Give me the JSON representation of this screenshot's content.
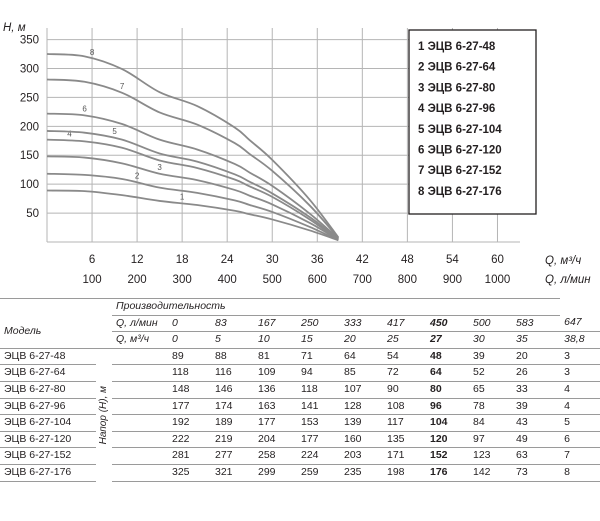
{
  "chart_data": {
    "type": "line",
    "ylabel": "H, м",
    "xlabel_top": "Q, м³/ч",
    "xlabel_bottom": "Q, л/мин",
    "y_ticks": [
      50,
      100,
      150,
      200,
      250,
      300,
      350
    ],
    "x_ticks_m3h": [
      6,
      12,
      18,
      24,
      30,
      36,
      42,
      48,
      54,
      60
    ],
    "x_ticks_lmin": [
      100,
      200,
      300,
      400,
      500,
      600,
      700,
      800,
      900,
      1000
    ],
    "xlim_m3h": [
      0,
      63
    ],
    "ylim": [
      0,
      370
    ],
    "legend_placement": "top-right",
    "series": [
      {
        "label": "1",
        "name": "1 ЭЦВ 6-27-48",
        "x": [
          0,
          5,
          10,
          15,
          20,
          25,
          27,
          30,
          35,
          38.8
        ],
        "y": [
          89,
          88,
          81,
          71,
          64,
          54,
          48,
          39,
          20,
          3
        ]
      },
      {
        "label": "2",
        "name": "2 ЭЦВ 6-27-64",
        "x": [
          0,
          5,
          10,
          15,
          20,
          25,
          27,
          30,
          35,
          38.8
        ],
        "y": [
          118,
          116,
          109,
          94,
          85,
          72,
          64,
          52,
          26,
          3
        ]
      },
      {
        "label": "3",
        "name": "3 ЭЦВ 6-27-80",
        "x": [
          0,
          5,
          10,
          15,
          20,
          25,
          27,
          30,
          35,
          38.8
        ],
        "y": [
          148,
          146,
          136,
          118,
          107,
          90,
          80,
          65,
          33,
          4
        ]
      },
      {
        "label": "4",
        "name": "4 ЭЦВ 6-27-96",
        "x": [
          0,
          5,
          10,
          15,
          20,
          25,
          27,
          30,
          35,
          38.8
        ],
        "y": [
          177,
          174,
          163,
          141,
          128,
          108,
          96,
          78,
          39,
          4
        ]
      },
      {
        "label": "5",
        "name": "5 ЭЦВ 6-27-104",
        "x": [
          0,
          5,
          10,
          15,
          20,
          25,
          27,
          30,
          35,
          38.8
        ],
        "y": [
          192,
          189,
          177,
          153,
          139,
          117,
          104,
          84,
          43,
          5
        ]
      },
      {
        "label": "6",
        "name": "6 ЭЦВ 6-27-120",
        "x": [
          0,
          5,
          10,
          15,
          20,
          25,
          27,
          30,
          35,
          38.8
        ],
        "y": [
          222,
          219,
          204,
          177,
          160,
          135,
          120,
          97,
          49,
          6
        ]
      },
      {
        "label": "7",
        "name": "7 ЭЦВ 6-27-152",
        "x": [
          0,
          5,
          10,
          15,
          20,
          25,
          27,
          30,
          35,
          38.8
        ],
        "y": [
          281,
          277,
          258,
          224,
          203,
          171,
          152,
          123,
          63,
          7
        ]
      },
      {
        "label": "8",
        "name": "8 ЭЦВ 6-27-176",
        "x": [
          0,
          5,
          10,
          15,
          20,
          25,
          27,
          30,
          35,
          38.8
        ],
        "y": [
          325,
          321,
          299,
          259,
          235,
          198,
          176,
          142,
          73,
          8
        ]
      }
    ],
    "colors": {
      "grid": "#b5b5b5",
      "curve": "#8a8a8a",
      "legend_border": "#231f20"
    }
  },
  "table": {
    "productivity_header": "Производительность",
    "model_header": "Модель",
    "q_lmin_label": "Q, л/мин",
    "q_m3h_label": "Q, м³/ч",
    "q_lmin": [
      "0",
      "83",
      "167",
      "250",
      "333",
      "417",
      "450",
      "500",
      "583",
      "647"
    ],
    "q_m3h": [
      "0",
      "5",
      "10",
      "15",
      "20",
      "25",
      "27",
      "30",
      "35",
      "38,8"
    ],
    "highlight_column": 6,
    "head_label": "Напор (Н), м",
    "rows": [
      {
        "model": "ЭЦВ 6-27-48",
        "values": [
          "89",
          "88",
          "81",
          "71",
          "64",
          "54",
          "48",
          "39",
          "20",
          "3"
        ]
      },
      {
        "model": "ЭЦВ 6-27-64",
        "values": [
          "118",
          "116",
          "109",
          "94",
          "85",
          "72",
          "64",
          "52",
          "26",
          "3"
        ]
      },
      {
        "model": "ЭЦВ 6-27-80",
        "values": [
          "148",
          "146",
          "136",
          "118",
          "107",
          "90",
          "80",
          "65",
          "33",
          "4"
        ]
      },
      {
        "model": "ЭЦВ 6-27-96",
        "values": [
          "177",
          "174",
          "163",
          "141",
          "128",
          "108",
          "96",
          "78",
          "39",
          "4"
        ]
      },
      {
        "model": "ЭЦВ 6-27-104",
        "values": [
          "192",
          "189",
          "177",
          "153",
          "139",
          "117",
          "104",
          "84",
          "43",
          "5"
        ]
      },
      {
        "model": "ЭЦВ 6-27-120",
        "values": [
          "222",
          "219",
          "204",
          "177",
          "160",
          "135",
          "120",
          "97",
          "49",
          "6"
        ]
      },
      {
        "model": "ЭЦВ 6-27-152",
        "values": [
          "281",
          "277",
          "258",
          "224",
          "203",
          "171",
          "152",
          "123",
          "63",
          "7"
        ]
      },
      {
        "model": "ЭЦВ 6-27-176",
        "values": [
          "325",
          "321",
          "299",
          "259",
          "235",
          "198",
          "176",
          "142",
          "73",
          "8"
        ]
      }
    ]
  }
}
